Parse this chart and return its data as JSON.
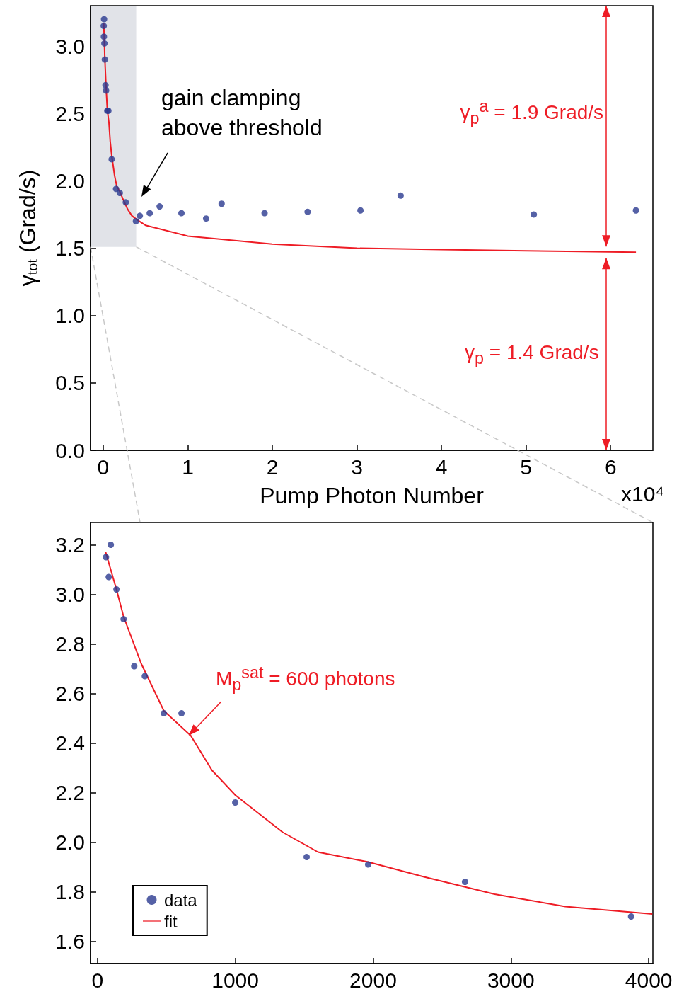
{
  "chart_data": [
    {
      "type": "scatter",
      "xlabel": "Pump Photon Number",
      "ylabel": "γ$_{tot}$ (Grad/s)",
      "xlim": [
        -0.15,
        6.5
      ],
      "xticks": [
        0,
        1,
        2,
        3,
        4,
        5,
        6
      ],
      "ylim": [
        0,
        3.3
      ],
      "yticks": [
        {
          "value": 0,
          "label": "0.0"
        },
        {
          "value": 0.5,
          "label": "0.5"
        },
        {
          "value": 1,
          "label": "1.0"
        },
        {
          "value": 1.5,
          "label": "1.5"
        },
        {
          "value": 2,
          "label": "2.0"
        },
        {
          "value": 2.5,
          "label": "2.5"
        },
        {
          "value": 3,
          "label": "3.0"
        }
      ],
      "grid": false,
      "legend": false,
      "bands": [
        {
          "axis": "x",
          "from": -0.15,
          "to": 0.39,
          "color": "#e1e3e8"
        }
      ],
      "annotations": [
        "gain clamping\nabove threshold",
        "γ$_{p}$$^{a}$ = 1.9 Grad/s",
        "γ$_{p}$ = 1.4 Grad/s",
        "x10⁴"
      ],
      "series": [
        {
          "marker": "circle",
          "color": "#2b3990",
          "x": [
            0.006,
            0.008,
            0.01,
            0.014,
            0.019,
            0.027,
            0.034,
            0.048,
            0.061,
            0.1,
            0.152,
            0.196,
            0.267,
            0.387,
            0.433,
            0.55,
            0.667,
            0.925,
            1.217,
            1.4,
            1.908,
            2.417,
            3.042,
            3.517,
            5.092,
            6.3
          ],
          "values": [
            3.15,
            3.07,
            3.2,
            3.02,
            2.9,
            2.71,
            2.67,
            2.52,
            2.52,
            2.16,
            1.94,
            1.91,
            1.84,
            1.7,
            1.74,
            1.76,
            1.81,
            1.76,
            1.72,
            1.83,
            1.76,
            1.77,
            1.78,
            1.89,
            1.75,
            1.78
          ]
        },
        {
          "type": "line",
          "marker": "none",
          "color": "#ee1c25",
          "x": [
            0.006,
            0.014,
            0.019,
            0.032,
            0.048,
            0.068,
            0.083,
            0.1,
            0.134,
            0.16,
            0.196,
            0.237,
            0.288,
            0.34,
            0.403,
            0.5,
            1,
            2,
            3,
            4,
            5,
            6.3
          ],
          "values": [
            3.17,
            3.02,
            2.91,
            2.72,
            2.53,
            2.43,
            2.29,
            2.19,
            2.04,
            1.96,
            1.92,
            1.86,
            1.79,
            1.74,
            1.71,
            1.67,
            1.59,
            1.53,
            1.5,
            1.49,
            1.48,
            1.47
          ]
        }
      ]
    },
    {
      "type": "scatter",
      "xlim": [
        -50,
        4030
      ],
      "xticks": [
        0,
        1000,
        2000,
        3000,
        4000
      ],
      "ylim": [
        1.51,
        3.29
      ],
      "yticks": [
        {
          "value": 1.6,
          "label": "1.6"
        },
        {
          "value": 1.8,
          "label": "1.8"
        },
        {
          "value": 2,
          "label": "2.0"
        },
        {
          "value": 2.2,
          "label": "2.2"
        },
        {
          "value": 2.4,
          "label": "2.4"
        },
        {
          "value": 2.6,
          "label": "2.6"
        },
        {
          "value": 2.8,
          "label": "2.8"
        },
        {
          "value": 3,
          "label": "3.0"
        },
        {
          "value": 3.2,
          "label": "3.2"
        }
      ],
      "grid": false,
      "legend": "bottom left",
      "annotations": [
        {
          "text": "M$_{p}$$^{sat}$ = 600 photons",
          "x": 662,
          "y": 2.43
        }
      ],
      "series": [
        {
          "name": "data",
          "marker": "circle",
          "color": "#2b3990",
          "x": [
            62,
            82,
            97,
            138,
            190,
            267,
            344,
            482,
            610,
            1000,
            1518,
            1964,
            2667,
            3872
          ],
          "values": [
            3.15,
            3.07,
            3.2,
            3.02,
            2.9,
            2.71,
            2.67,
            2.52,
            2.52,
            2.16,
            1.94,
            1.91,
            1.84,
            1.7
          ]
        },
        {
          "type": "line",
          "name": "fit",
          "marker": "none",
          "color": "#ee1c25",
          "x": [
            60,
            138,
            190,
            318,
            482,
            677,
            831,
            1000,
            1344,
            1600,
            1964,
            2369,
            2882,
            3395,
            4026
          ],
          "values": [
            3.17,
            3.02,
            2.91,
            2.72,
            2.53,
            2.43,
            2.29,
            2.19,
            2.04,
            1.96,
            1.92,
            1.86,
            1.79,
            1.74,
            1.71
          ]
        }
      ]
    }
  ]
}
